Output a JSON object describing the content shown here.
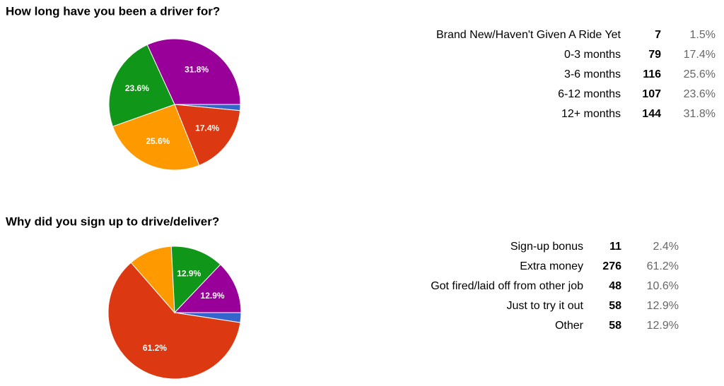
{
  "chart_data": [
    {
      "type": "pie",
      "title": "How long have you been a driver for?",
      "categories": [
        "Brand New/Haven't Given A Ride Yet",
        "0-3 months",
        "3-6 months",
        "6-12 months",
        "12+ months"
      ],
      "counts": [
        7,
        79,
        116,
        107,
        144
      ],
      "values": [
        1.5,
        17.4,
        25.6,
        23.6,
        31.8
      ],
      "value_labels": [
        "1.5%",
        "17.4%",
        "25.6%",
        "23.6%",
        "31.8%"
      ],
      "colors": [
        "#3366cc",
        "#dc3912",
        "#ff9900",
        "#109618",
        "#990099"
      ]
    },
    {
      "type": "pie",
      "title": "Why did you sign up to drive/deliver?",
      "categories": [
        "Sign-up bonus",
        "Extra money",
        "Got fired/laid off from other job",
        "Just to try it out",
        "Other"
      ],
      "counts": [
        11,
        276,
        48,
        58,
        58
      ],
      "values": [
        2.4,
        61.2,
        10.6,
        12.9,
        12.9
      ],
      "value_labels": [
        "2.4%",
        "61.2%",
        "10.6%",
        "12.9%",
        "12.9%"
      ],
      "colors": [
        "#3366cc",
        "#dc3912",
        "#ff9900",
        "#109618",
        "#990099"
      ]
    }
  ]
}
